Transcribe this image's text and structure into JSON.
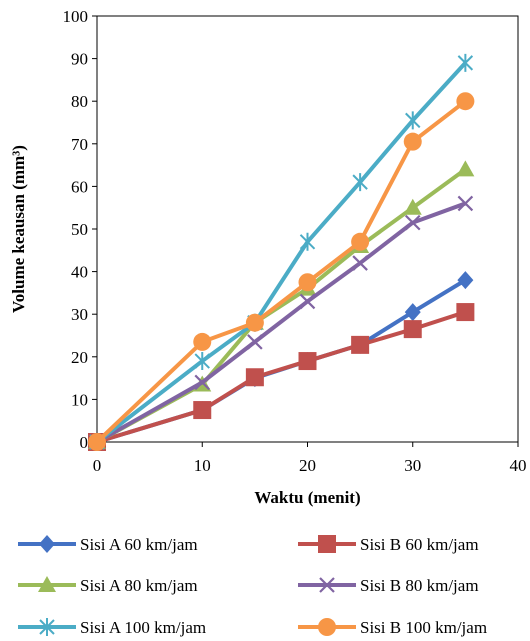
{
  "chart_data": {
    "type": "line",
    "xlabel": "Waktu (menit)",
    "ylabel": "Volume keausan (mm³)",
    "xlim": [
      0,
      40
    ],
    "ylim": [
      0,
      100
    ],
    "xticks": [
      0,
      10,
      20,
      30,
      40
    ],
    "yticks": [
      0,
      10,
      20,
      30,
      40,
      50,
      60,
      70,
      80,
      90,
      100
    ],
    "grid": false,
    "legend_position": "bottom",
    "x": [
      0,
      10,
      15,
      20,
      25,
      30,
      35
    ],
    "series": [
      {
        "name": "Sisi A 60 km/jam",
        "color": "#4472C4",
        "marker": "diamond",
        "values": [
          0,
          7.5,
          15,
          19,
          22.8,
          30.5,
          38
        ]
      },
      {
        "name": "Sisi B 60 km/jam",
        "color": "#C0504D",
        "marker": "square",
        "values": [
          0,
          7.5,
          15.2,
          19,
          22.8,
          26.5,
          30.5
        ]
      },
      {
        "name": "Sisi A 80 km/jam",
        "color": "#9BBB59",
        "marker": "triangle",
        "values": [
          0,
          13.5,
          28,
          36,
          46,
          55,
          64
        ]
      },
      {
        "name": "Sisi B 80 km/jam",
        "color": "#8064A2",
        "marker": "x",
        "values": [
          0,
          14,
          23.5,
          33,
          42,
          51.5,
          56
        ]
      },
      {
        "name": "Sisi A 100 km/jam",
        "color": "#4BACC6",
        "marker": "star",
        "values": [
          0,
          19,
          28,
          47,
          61,
          75.5,
          89
        ]
      },
      {
        "name": "Sisi B 100 km/jam",
        "color": "#F79646",
        "marker": "circle",
        "values": [
          0,
          23.5,
          28,
          37.5,
          47,
          70.5,
          80
        ]
      }
    ]
  }
}
